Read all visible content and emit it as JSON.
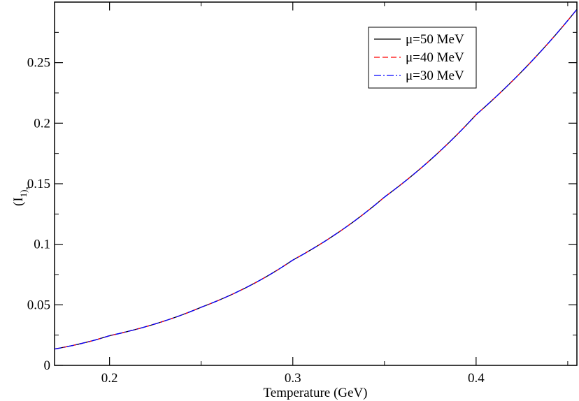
{
  "chart_data": {
    "type": "line",
    "xlabel": "Temperature (GeV)",
    "ylabel": "(I1)s",
    "ylabel_main": "(I",
    "ylabel_sub1": "1)",
    "ylabel_sub2": "s",
    "xlim": [
      0.17,
      0.455
    ],
    "ylim": [
      0,
      0.3
    ],
    "xticks": [
      0.2,
      0.3,
      0.4
    ],
    "xtick_labels": [
      "0.2",
      "0.3",
      "0.4"
    ],
    "yticks": [
      0,
      0.05,
      0.1,
      0.15,
      0.2,
      0.25
    ],
    "ytick_labels": [
      "0",
      "0.05",
      "0.1",
      "0.15",
      "0.2",
      "0.25"
    ],
    "grid": false,
    "legend_position": "top-right",
    "x": [
      0.17,
      0.2,
      0.25,
      0.3,
      0.35,
      0.4,
      0.455
    ],
    "series": [
      {
        "name": "μ=50 MeV",
        "color": "#000000",
        "dash": "solid",
        "values": [
          0.0135,
          0.0245,
          0.048,
          0.087,
          0.139,
          0.207,
          0.294
        ]
      },
      {
        "name": "μ=40 MeV",
        "color": "#ff0000",
        "dash": "dashed",
        "values": [
          0.0135,
          0.0245,
          0.048,
          0.087,
          0.139,
          0.207,
          0.294
        ]
      },
      {
        "name": "μ=30 MeV",
        "color": "#0000ff",
        "dash": "dashdot",
        "values": [
          0.0135,
          0.0245,
          0.048,
          0.087,
          0.139,
          0.207,
          0.294
        ]
      }
    ]
  }
}
